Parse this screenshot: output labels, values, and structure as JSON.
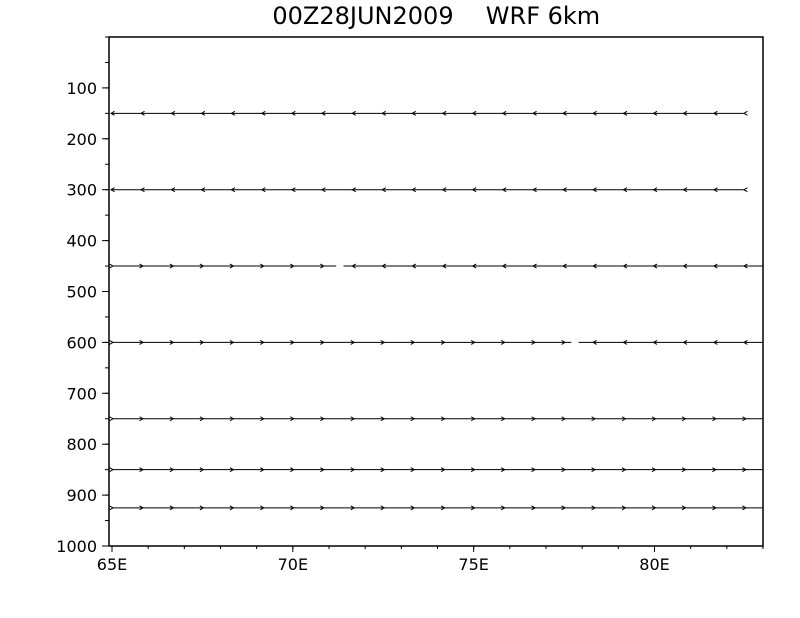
{
  "chart_data": {
    "type": "vector-cross-section",
    "title_time": "00Z28JUN2009",
    "title_model": "WRF 6km",
    "xlim": [
      65,
      83
    ],
    "ylim": [
      1000,
      0
    ],
    "x_ticks": [
      {
        "value": 65,
        "label": "65E"
      },
      {
        "value": 70,
        "label": "70E"
      },
      {
        "value": 75,
        "label": "75E"
      },
      {
        "value": 80,
        "label": "80E"
      }
    ],
    "y_ticks": [
      {
        "value": 100,
        "label": "100"
      },
      {
        "value": 200,
        "label": "200"
      },
      {
        "value": 300,
        "label": "300"
      },
      {
        "value": 400,
        "label": "400"
      },
      {
        "value": 500,
        "label": "500"
      },
      {
        "value": 600,
        "label": "600"
      },
      {
        "value": 700,
        "label": "700"
      },
      {
        "value": 800,
        "label": "800"
      },
      {
        "value": 900,
        "label": "900"
      },
      {
        "value": 1000,
        "label": "1000"
      }
    ],
    "x_arrow_positions": [
      65.0,
      65.83,
      66.67,
      67.5,
      68.33,
      69.17,
      70.0,
      70.83,
      71.67,
      72.5,
      73.33,
      74.17,
      75.0,
      75.83,
      76.67,
      77.5,
      78.33,
      79.17,
      80.0,
      80.83,
      81.67,
      82.5
    ],
    "levels": [
      {
        "pressure": 150,
        "direction": "west",
        "x_start": 65,
        "x_end": 82.5,
        "gap": null
      },
      {
        "pressure": 300,
        "direction": "west",
        "x_start": 65,
        "x_end": 82.5,
        "gap": null
      },
      {
        "pressure": 450,
        "direction": "mixed",
        "x_start": 65,
        "x_end": 83,
        "switch_x": 71.3,
        "gap": [
          71.2,
          71.4
        ]
      },
      {
        "pressure": 600,
        "direction": "mixed",
        "x_start": 65,
        "x_end": 83,
        "switch_x": 77.8,
        "gap": [
          77.7,
          77.9
        ]
      },
      {
        "pressure": 750,
        "direction": "east",
        "x_start": 65,
        "x_end": 83,
        "gap": null
      },
      {
        "pressure": 850,
        "direction": "east",
        "x_start": 65,
        "x_end": 83,
        "gap": null
      },
      {
        "pressure": 925,
        "direction": "east",
        "x_start": 65,
        "x_end": 83,
        "gap": null
      }
    ]
  }
}
